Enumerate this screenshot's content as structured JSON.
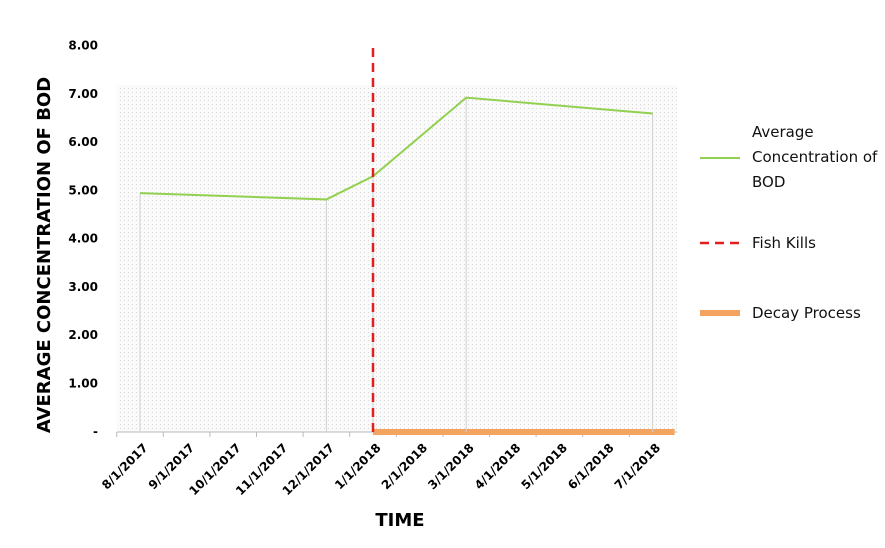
{
  "chart_data": {
    "type": "line",
    "x_label": "TIME",
    "y_label": "AVERAGE CONCENTRATION OF BOD",
    "categories": [
      "8/1/2017",
      "9/1/2017",
      "10/1/2017",
      "11/1/2017",
      "12/1/2017",
      "1/1/2018",
      "2/1/2018",
      "3/1/2018",
      "4/1/2018",
      "5/1/2018",
      "6/1/2018",
      "7/1/2018"
    ],
    "ylim": [
      0,
      8
    ],
    "yticks": [
      {
        "value": 0,
        "label": "-"
      },
      {
        "value": 1,
        "label": "1.00"
      },
      {
        "value": 2,
        "label": "2.00"
      },
      {
        "value": 3,
        "label": "3.00"
      },
      {
        "value": 4,
        "label": "4.00"
      },
      {
        "value": 5,
        "label": "5.00"
      },
      {
        "value": 6,
        "label": "6.00"
      },
      {
        "value": 7,
        "label": "7.00"
      },
      {
        "value": 8,
        "label": "8.00"
      }
    ],
    "grid": false,
    "legend": "right",
    "series": [
      {
        "name": "Average Concentration of BOD",
        "color": "#92d050",
        "line_style": "solid",
        "x": [
          "8/1/2017",
          "12/1/2017",
          "1/1/2018",
          "3/1/2018",
          "7/1/2018"
        ],
        "values": [
          4.95,
          4.82,
          5.3,
          6.93,
          6.6
        ]
      },
      {
        "name": "Fish Kills",
        "color": "#e02020",
        "line_style": "dashed",
        "x": [
          "1/1/2018",
          "1/1/2018"
        ],
        "values": [
          0,
          8
        ]
      },
      {
        "name": "Decay Process",
        "color": "#f4a460",
        "line_style": "thick",
        "x": [
          "1/1/2018",
          "7/1/2018"
        ],
        "values": [
          0,
          0
        ]
      }
    ]
  }
}
